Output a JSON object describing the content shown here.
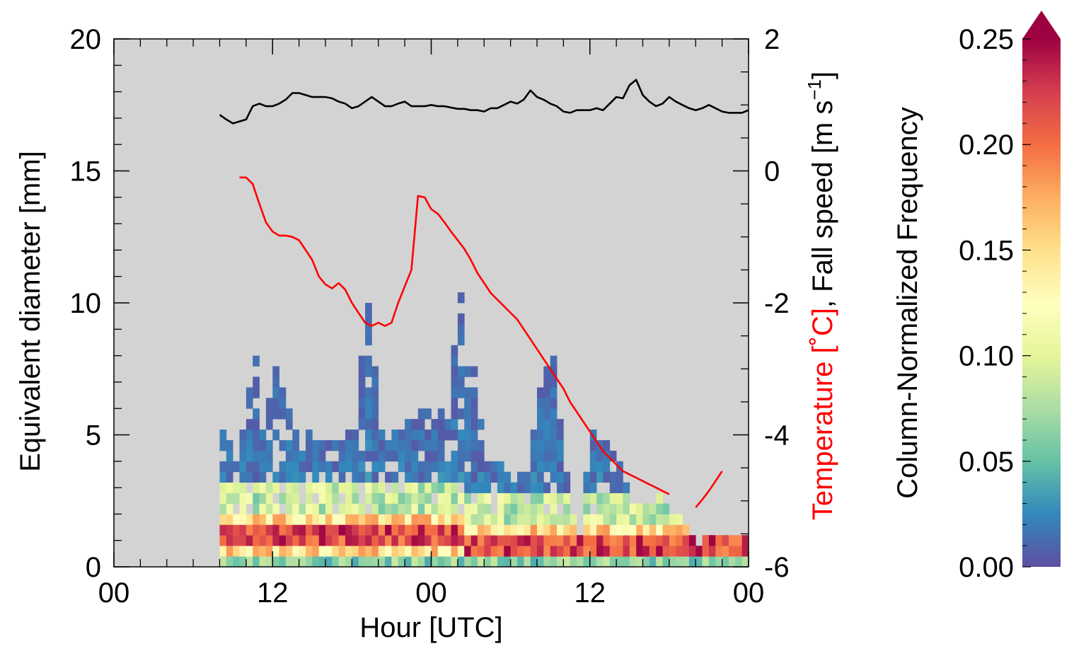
{
  "chart_data": {
    "type": "heatmap",
    "title": "",
    "xlabel": "Hour [UTC]",
    "ylabel": "Equivalent diameter [mm]",
    "y2label": {
      "red_part": "Temperature [˚C]",
      "black_part": ", Fall speed [m s",
      "superscript": "−1",
      "closing": "]"
    },
    "colorbar_label": "Column-Normalized Frequency",
    "x_ticks": [
      {
        "hour": 0,
        "label": "00"
      },
      {
        "hour": 12,
        "label": "12"
      },
      {
        "hour": 24,
        "label": "00"
      },
      {
        "hour": 36,
        "label": "12"
      },
      {
        "hour": 48,
        "label": "00"
      }
    ],
    "xlim": [
      0,
      48
    ],
    "y_ticks": [
      {
        "value": 0,
        "label": "0"
      },
      {
        "value": 5,
        "label": "5"
      },
      {
        "value": 10,
        "label": "10"
      },
      {
        "value": 15,
        "label": "15"
      },
      {
        "value": 20,
        "label": "20"
      }
    ],
    "ylim": [
      0,
      20
    ],
    "y2_ticks": [
      {
        "value": -6,
        "label": "-6"
      },
      {
        "value": -4,
        "label": "-4"
      },
      {
        "value": -2,
        "label": "-2"
      },
      {
        "value": 0,
        "label": "0"
      },
      {
        "value": 2,
        "label": "2"
      }
    ],
    "y2lim": [
      -6,
      2
    ],
    "colorbar_ticks": [
      {
        "value": 0.0,
        "label": "0.00"
      },
      {
        "value": 0.05,
        "label": "0.05"
      },
      {
        "value": 0.1,
        "label": "0.10"
      },
      {
        "value": 0.15,
        "label": "0.15"
      },
      {
        "value": 0.2,
        "label": "0.20"
      },
      {
        "value": 0.25,
        "label": "0.25"
      }
    ],
    "colorbar_range": [
      0.0,
      0.25
    ],
    "colorbar_extend": "max",
    "colormap": [
      "#5e4fa2",
      "#3288bd",
      "#66c2a5",
      "#abdda4",
      "#e6f598",
      "#ffffbf",
      "#fee08b",
      "#fdae61",
      "#f46d43",
      "#d53e4f",
      "#9e0142"
    ],
    "colors": {
      "plot_background": "#d3d3d3",
      "temperature": "#ff0000",
      "fall_speed": "#000000"
    },
    "heatmap": {
      "x_start": 8.0,
      "x_end": 48.0,
      "x_step": 0.5,
      "y_step": 0.4,
      "max_rows": [
        {
          "hour": 8.0,
          "top": 5.2
        },
        {
          "hour": 9.0,
          "top": 3.8
        },
        {
          "hour": 10.0,
          "top": 6.6
        },
        {
          "hour": 10.5,
          "top": 8.0
        },
        {
          "hour": 11.0,
          "top": 5.0
        },
        {
          "hour": 12.0,
          "top": 7.4
        },
        {
          "hour": 13.5,
          "top": 5.2
        },
        {
          "hour": 15.0,
          "top": 4.8
        },
        {
          "hour": 16.0,
          "top": 4.8
        },
        {
          "hour": 17.0,
          "top": 4.8
        },
        {
          "hour": 18.0,
          "top": 5.0
        },
        {
          "hour": 19.0,
          "top": 10.4
        },
        {
          "hour": 19.5,
          "top": 7.6
        },
        {
          "hour": 20.0,
          "top": 5.2
        },
        {
          "hour": 21.0,
          "top": 5.2
        },
        {
          "hour": 22.0,
          "top": 5.6
        },
        {
          "hour": 23.0,
          "top": 6.4
        },
        {
          "hour": 24.0,
          "top": 5.6
        },
        {
          "hour": 25.0,
          "top": 6.0
        },
        {
          "hour": 26.0,
          "top": 10.4
        },
        {
          "hour": 26.5,
          "top": 7.6
        },
        {
          "hour": 27.0,
          "top": 7.6
        },
        {
          "hour": 28.0,
          "top": 3.6
        },
        {
          "hour": 29.0,
          "top": 3.6
        },
        {
          "hour": 30.0,
          "top": 3.0
        },
        {
          "hour": 31.0,
          "top": 3.4
        },
        {
          "hour": 32.0,
          "top": 6.8
        },
        {
          "hour": 33.0,
          "top": 8.0
        },
        {
          "hour": 34.0,
          "top": 3.2
        },
        {
          "hour": 35.0,
          "top": 1.2
        },
        {
          "hour": 36.0,
          "top": 5.2
        },
        {
          "hour": 37.0,
          "top": 5.2
        },
        {
          "hour": 38.0,
          "top": 3.8
        },
        {
          "hour": 39.0,
          "top": 2.4
        },
        {
          "hour": 40.0,
          "top": 2.4
        },
        {
          "hour": 41.0,
          "top": 2.6
        },
        {
          "hour": 42.0,
          "top": 1.8
        },
        {
          "hour": 43.0,
          "top": 1.6
        },
        {
          "hour": 44.0,
          "top": 0.8
        },
        {
          "hour": 45.0,
          "top": 1.0
        },
        {
          "hour": 46.0,
          "top": 1.0
        },
        {
          "hour": 47.0,
          "top": 1.0
        },
        {
          "hour": 48.0,
          "top": 0.8
        }
      ]
    },
    "series": [
      {
        "name": "",
        "role": "fall_speed",
        "axis": "y2",
        "x": [
          8.0,
          8.5,
          9.0,
          9.5,
          10.0,
          10.5,
          11.0,
          11.5,
          12.0,
          12.5,
          13.0,
          13.5,
          14.0,
          14.5,
          15.0,
          15.5,
          16.0,
          16.5,
          17.0,
          17.5,
          18.0,
          18.5,
          19.0,
          19.5,
          20.0,
          20.5,
          21.0,
          21.5,
          22.0,
          22.5,
          23.0,
          23.5,
          24.0,
          24.5,
          25.0,
          25.5,
          26.0,
          26.5,
          27.0,
          27.5,
          28.0,
          28.5,
          29.0,
          29.5,
          30.0,
          30.5,
          31.0,
          31.5,
          32.0,
          32.5,
          33.0,
          33.5,
          34.0,
          34.5,
          35.0,
          35.5,
          36.0,
          36.5,
          37.0,
          37.5,
          38.0,
          38.5,
          39.0,
          39.5,
          40.0,
          40.5,
          41.0,
          41.5,
          42.0,
          42.5,
          43.0,
          43.5,
          44.0,
          44.5,
          45.0,
          45.5,
          46.0,
          46.5,
          47.0,
          47.5,
          48.0
        ],
        "values": [
          0.85,
          0.78,
          0.72,
          0.75,
          0.78,
          0.98,
          1.02,
          0.98,
          0.98,
          1.02,
          1.08,
          1.18,
          1.18,
          1.15,
          1.12,
          1.12,
          1.12,
          1.1,
          1.05,
          1.02,
          0.95,
          0.98,
          1.05,
          1.12,
          1.05,
          0.98,
          0.98,
          1.02,
          1.05,
          0.98,
          0.98,
          0.98,
          1.0,
          0.98,
          0.98,
          0.96,
          0.94,
          0.94,
          0.92,
          0.92,
          0.9,
          0.95,
          0.95,
          1.0,
          1.05,
          1.02,
          1.08,
          1.22,
          1.12,
          1.08,
          1.02,
          0.98,
          0.9,
          0.88,
          0.92,
          0.92,
          0.92,
          0.95,
          0.92,
          1.02,
          1.12,
          1.1,
          1.3,
          1.38,
          1.15,
          1.05,
          0.98,
          1.02,
          1.12,
          1.05,
          1.0,
          0.95,
          0.92,
          0.95,
          1.0,
          0.95,
          0.9,
          0.88,
          0.88,
          0.88,
          0.92
        ]
      },
      {
        "name": "",
        "role": "temperature",
        "axis": "y2",
        "segments": [
          {
            "x": [
              9.5,
              10.0,
              10.5,
              11.0,
              11.5,
              12.0,
              12.5,
              13.0,
              13.5,
              14.0,
              14.5,
              15.0,
              15.5,
              16.0,
              16.5,
              17.0,
              17.5,
              18.0,
              18.5,
              19.0,
              19.5,
              20.0,
              20.5,
              21.0,
              21.5,
              22.0,
              22.5,
              23.0,
              23.5,
              24.0,
              24.5,
              25.0,
              25.5,
              26.0,
              26.5,
              27.0,
              27.5,
              28.0,
              28.5,
              29.0,
              29.5,
              30.0,
              30.5,
              31.0,
              31.5,
              32.0,
              32.5,
              33.0,
              33.5,
              34.0,
              34.5,
              35.0,
              35.5,
              36.0,
              36.5,
              37.0,
              37.5,
              38.0,
              38.5,
              39.0,
              39.5,
              40.0,
              40.5,
              41.0,
              41.5,
              42.0
            ],
            "values": [
              -0.1,
              -0.1,
              -0.2,
              -0.5,
              -0.78,
              -0.92,
              -0.98,
              -0.98,
              -1.0,
              -1.05,
              -1.2,
              -1.35,
              -1.6,
              -1.72,
              -1.78,
              -1.7,
              -1.8,
              -2.0,
              -2.15,
              -2.3,
              -2.35,
              -2.3,
              -2.35,
              -2.3,
              -2.0,
              -1.75,
              -1.5,
              -0.38,
              -0.4,
              -0.58,
              -0.65,
              -0.78,
              -0.92,
              -1.05,
              -1.18,
              -1.35,
              -1.55,
              -1.7,
              -1.85,
              -1.95,
              -2.05,
              -2.15,
              -2.25,
              -2.4,
              -2.55,
              -2.7,
              -2.85,
              -3.0,
              -3.15,
              -3.3,
              -3.5,
              -3.65,
              -3.8,
              -3.95,
              -4.1,
              -4.25,
              -4.35,
              -4.45,
              -4.55,
              -4.6,
              -4.65,
              -4.7,
              -4.75,
              -4.8,
              -4.85,
              -4.9
            ]
          },
          {
            "x": [
              44.0,
              44.5,
              45.0,
              45.5,
              46.0
            ],
            "values": [
              -5.1,
              -4.98,
              -4.85,
              -4.7,
              -4.55
            ]
          }
        ]
      }
    ]
  }
}
